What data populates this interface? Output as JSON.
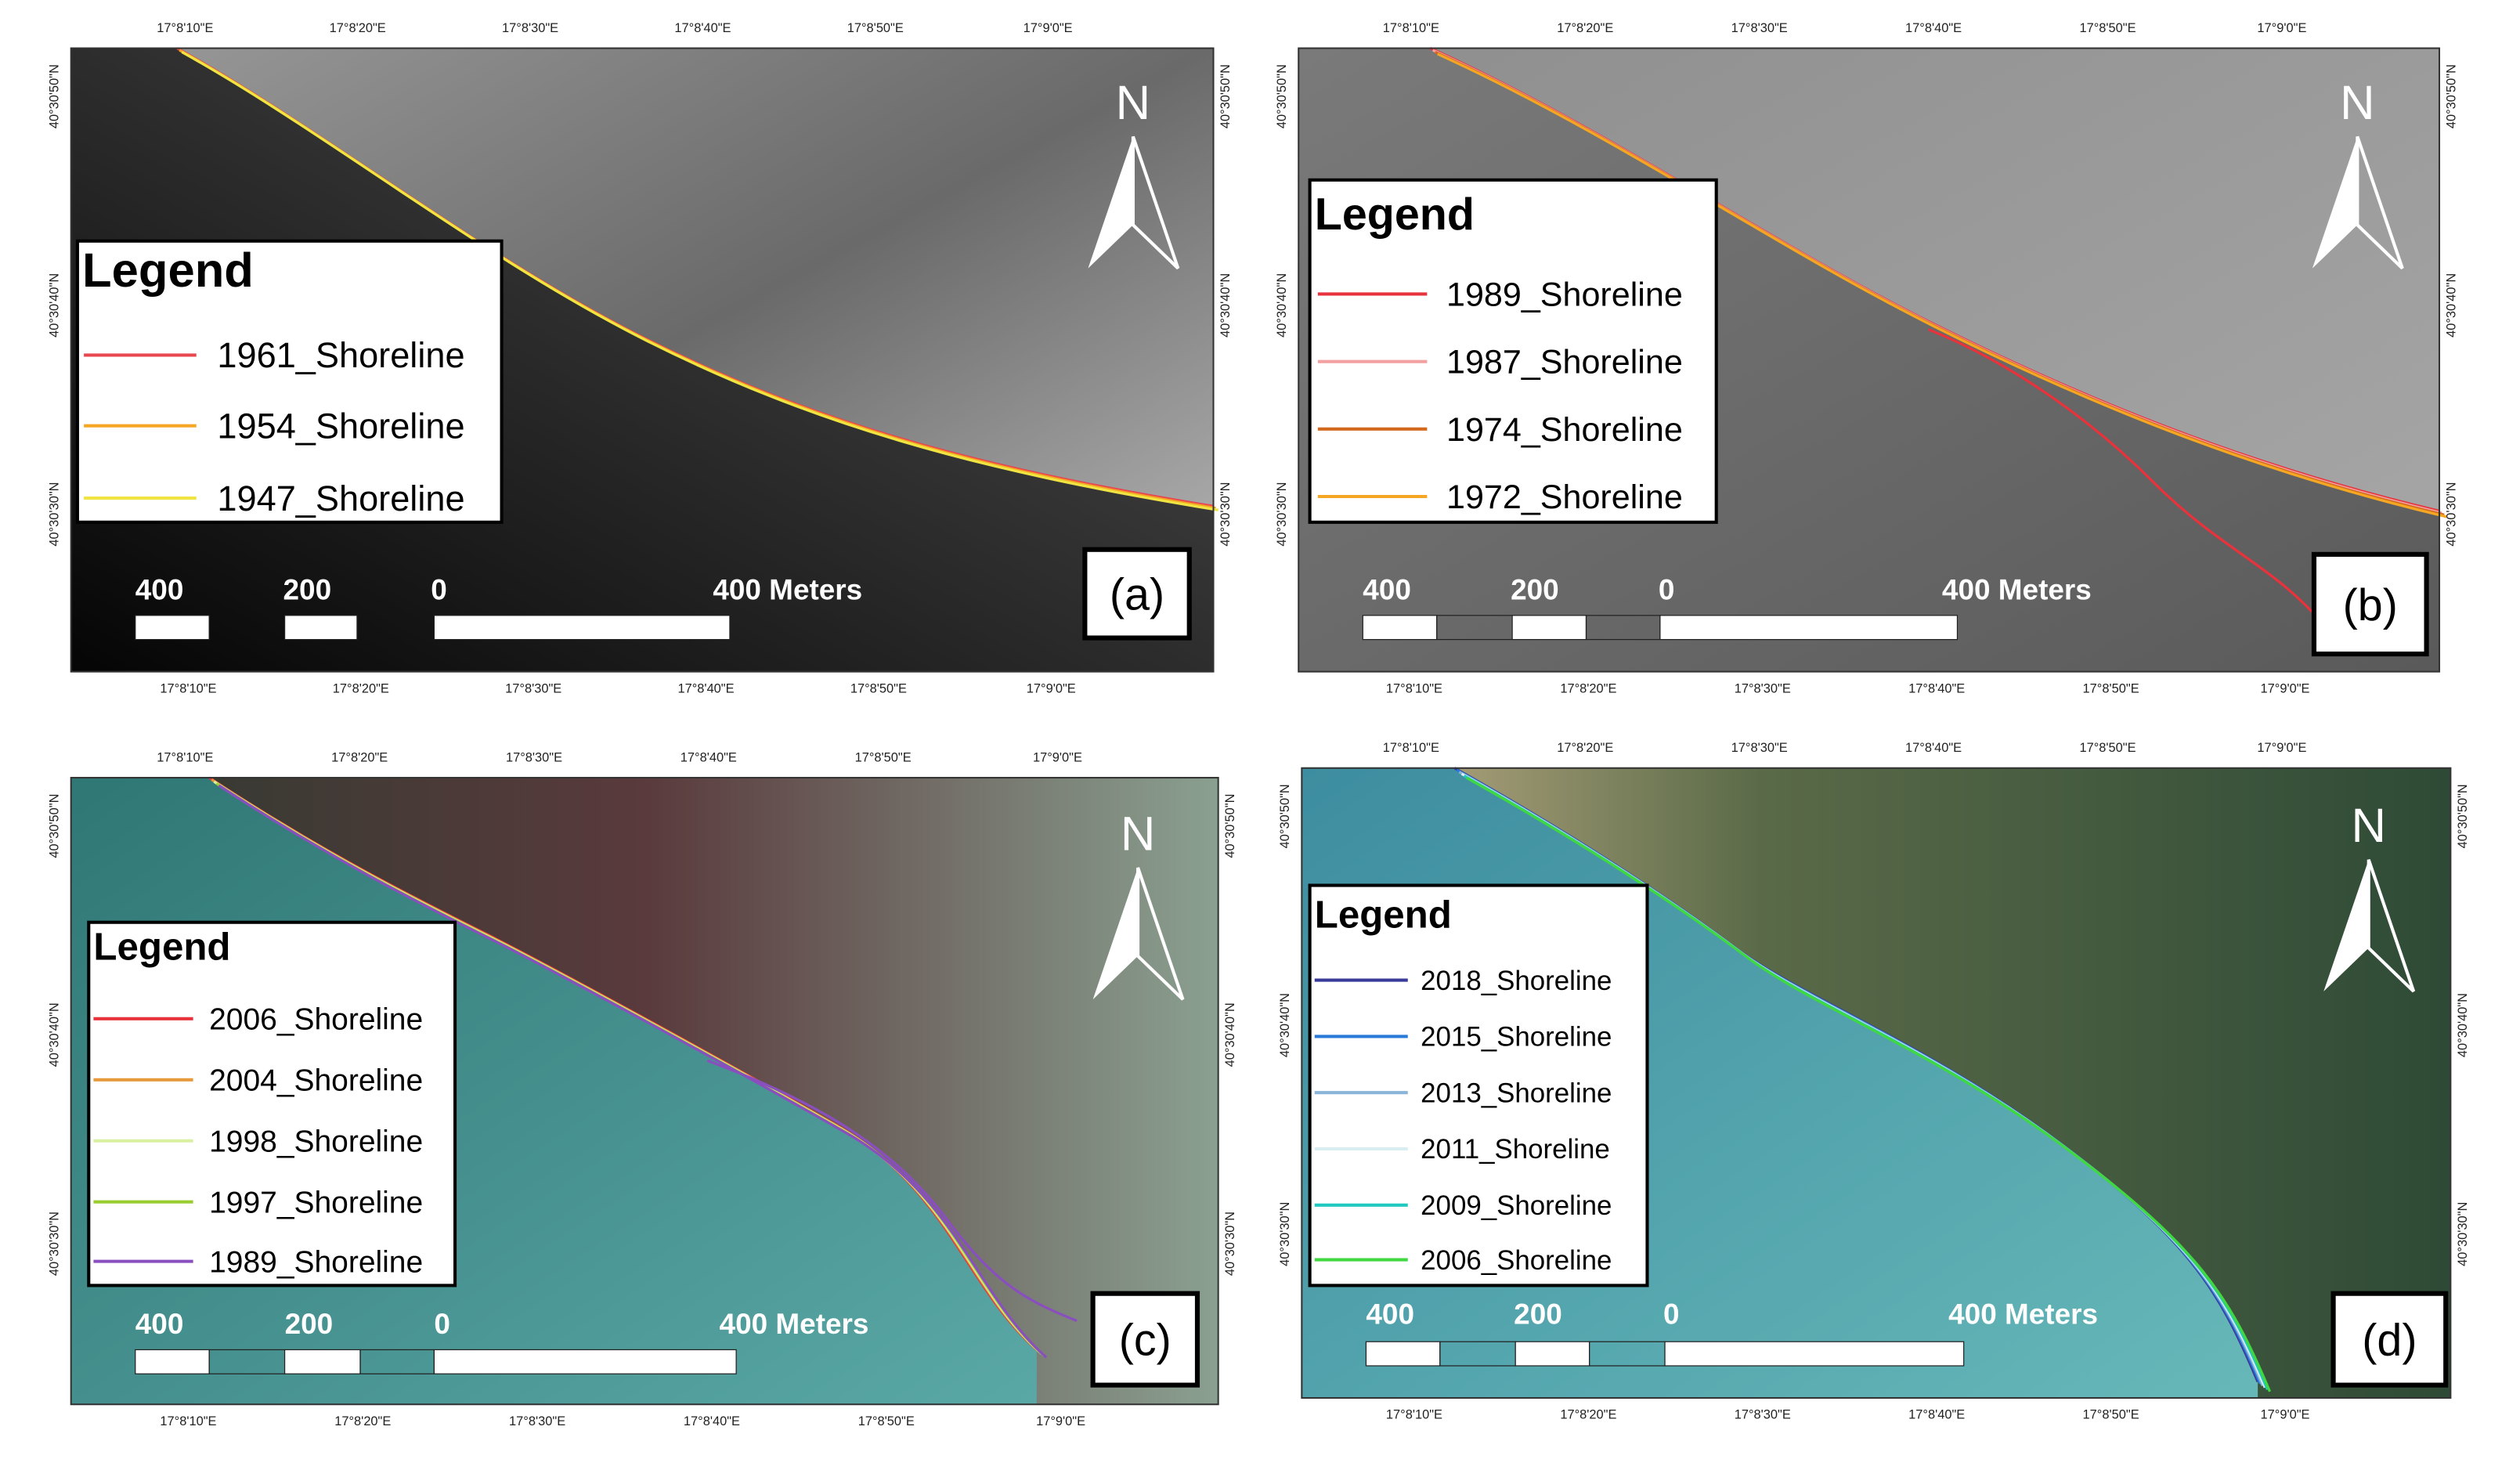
{
  "panels": [
    {
      "label": "(a)",
      "north": "N",
      "legend_title": "Legend",
      "legend": [
        {
          "name": "1961_Shoreline",
          "color": "#e8474f"
        },
        {
          "name": "1954_Shoreline",
          "color": "#f5a623"
        },
        {
          "name": "1947_Shoreline",
          "color": "#f0e442"
        }
      ],
      "scale_labels": [
        "400",
        "200",
        "0",
        "400 Meters"
      ],
      "x_ticks": [
        "17°8'10\"E",
        "17°8'20\"E",
        "17°8'30\"E",
        "17°8'40\"E",
        "17°8'50\"E",
        "17°9'0\"E"
      ],
      "y_ticks": [
        "40°30'50\"N",
        "40°30'40\"N",
        "40°30'30\"N"
      ]
    },
    {
      "label": "(b)",
      "north": "N",
      "legend_title": "Legend",
      "legend": [
        {
          "name": "1989_Shoreline",
          "color": "#e8323c"
        },
        {
          "name": "1987_Shoreline",
          "color": "#f2a0a0"
        },
        {
          "name": "1974_Shoreline",
          "color": "#d2691e"
        },
        {
          "name": "1972_Shoreline",
          "color": "#f5a623"
        }
      ],
      "scale_labels": [
        "400",
        "200",
        "0",
        "400 Meters"
      ],
      "x_ticks": [
        "17°8'10\"E",
        "17°8'20\"E",
        "17°8'30\"E",
        "17°8'40\"E",
        "17°8'50\"E",
        "17°9'0\"E"
      ],
      "y_ticks": [
        "40°30'50\"N",
        "40°30'40\"N",
        "40°30'30\"N"
      ]
    },
    {
      "label": "(c)",
      "north": "N",
      "legend_title": "Legend",
      "legend": [
        {
          "name": "2006_Shoreline",
          "color": "#e8323c"
        },
        {
          "name": "2004_Shoreline",
          "color": "#e69a3c"
        },
        {
          "name": "1998_Shoreline",
          "color": "#d8f0a0"
        },
        {
          "name": "1997_Shoreline",
          "color": "#9acd32"
        },
        {
          "name": "1989_Shoreline",
          "color": "#8a4fbf"
        }
      ],
      "scale_labels": [
        "400",
        "200",
        "0",
        "400 Meters"
      ],
      "x_ticks": [
        "17°8'10\"E",
        "17°8'20\"E",
        "17°8'30\"E",
        "17°8'40\"E",
        "17°8'50\"E",
        "17°9'0\"E"
      ],
      "y_ticks": [
        "40°30'50\"N",
        "40°30'40\"N",
        "40°30'30\"N"
      ]
    },
    {
      "label": "(d)",
      "north": "N",
      "legend_title": "Legend",
      "legend": [
        {
          "name": "2018_Shoreline",
          "color": "#3a3a9a"
        },
        {
          "name": "2015_Shoreline",
          "color": "#2a7ad8"
        },
        {
          "name": "2013_Shoreline",
          "color": "#8ab4d8"
        },
        {
          "name": "2011_Shoreline",
          "color": "#d8eef0"
        },
        {
          "name": "2009_Shoreline",
          "color": "#20c8c0"
        },
        {
          "name": "2006_Shoreline",
          "color": "#40d840"
        }
      ],
      "scale_labels": [
        "400",
        "200",
        "0",
        "400 Meters"
      ],
      "x_ticks": [
        "17°8'10\"E",
        "17°8'20\"E",
        "17°8'30\"E",
        "17°8'40\"E",
        "17°8'50\"E",
        "17°9'0\"E"
      ],
      "y_ticks": [
        "40°30'50\"N",
        "40°30'40\"N",
        "40°30'30\"N"
      ]
    }
  ]
}
